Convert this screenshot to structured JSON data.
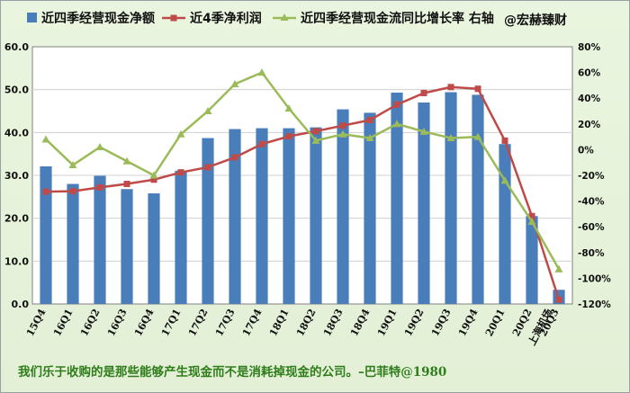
{
  "watermark": "@宏赫臻财",
  "footer_quote": "我们乐于收购的是那些能够产生现金而不是消耗掉现金的公司。–巴菲特@1980",
  "colors": {
    "bar": "#4a7ebb",
    "profit": "#be4b48",
    "growth": "#9bbb59",
    "background": "#e6f3db",
    "quote": "#2e7d1a"
  },
  "chart_data": {
    "type": "bar",
    "categories": [
      "15Q4",
      "16Q1",
      "16Q2",
      "16Q3",
      "16Q4",
      "17Q1",
      "17Q2",
      "17Q3",
      "17Q4",
      "18Q1",
      "18Q2",
      "18Q3",
      "18Q4",
      "19Q1",
      "19Q2",
      "19Q3",
      "19Q4",
      "20Q1",
      "20Q2",
      "20Q3"
    ],
    "x_extra_label": "上海机场",
    "series": [
      {
        "name": "近四季经营现金净额",
        "type": "bar",
        "axis": "left",
        "values": [
          32.1,
          28.0,
          29.9,
          26.8,
          25.8,
          31.1,
          38.7,
          40.8,
          41.0,
          41.0,
          41.2,
          45.4,
          44.6,
          49.3,
          47.0,
          49.4,
          48.8,
          37.3,
          20.5,
          3.3
        ]
      },
      {
        "name": "近4季净利润",
        "type": "line",
        "axis": "left",
        "values": [
          26.2,
          26.3,
          27.2,
          28.0,
          29.0,
          30.7,
          31.9,
          34.2,
          37.3,
          39.1,
          40.3,
          41.6,
          42.9,
          46.5,
          49.2,
          50.6,
          50.2,
          38.1,
          20.5,
          1.0
        ]
      },
      {
        "name": "近四季经营现金流同比增长率 右轴",
        "type": "line",
        "axis": "right",
        "values": [
          8,
          -12,
          2,
          -9,
          -20,
          12,
          30,
          51,
          60,
          32,
          7,
          12,
          9,
          20,
          14,
          9,
          10,
          -24,
          -56,
          -93
        ]
      }
    ],
    "left_axis": {
      "min": 0,
      "max": 60,
      "step": 10,
      "ticks": [
        "0.0",
        "10.0",
        "20.0",
        "30.0",
        "40.0",
        "50.0",
        "60.0"
      ]
    },
    "right_axis": {
      "min": -120,
      "max": 80,
      "step": 20,
      "ticks": [
        "-120%",
        "-100%",
        "-80%",
        "-60%",
        "-40%",
        "-20%",
        "0%",
        "20%",
        "40%",
        "60%",
        "80%"
      ]
    },
    "grid": true,
    "legend_position": "top"
  }
}
